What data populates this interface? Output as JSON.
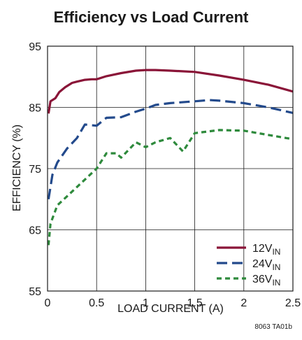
{
  "chart_data": {
    "type": "line",
    "title": "Efficiency vs Load Current",
    "xlabel": "LOAD CURRENT (A)",
    "ylabel": "EFFICIENCY (%)",
    "xlim": [
      0,
      2.5
    ],
    "ylim": [
      55,
      95
    ],
    "x_ticks": [
      0,
      0.5,
      1,
      1.5,
      2,
      2.5
    ],
    "x_tick_labels": [
      "0",
      "0.5",
      "1",
      "1.5",
      "2",
      "2.5"
    ],
    "y_ticks": [
      55,
      65,
      75,
      85,
      95
    ],
    "y_tick_labels": [
      "55",
      "65",
      "75",
      "85",
      "95"
    ],
    "grid": true,
    "legend_position": "bottom-right",
    "footnote": "8063 TA01b",
    "series": [
      {
        "name": "12V",
        "subscript": "IN",
        "color": "#8a1538",
        "dash": "solid",
        "x": [
          0.01,
          0.03,
          0.08,
          0.12,
          0.18,
          0.25,
          0.3,
          0.38,
          0.45,
          0.5,
          0.6,
          0.75,
          0.9,
          1.0,
          1.1,
          1.25,
          1.5,
          1.75,
          2.0,
          2.25,
          2.5
        ],
        "y": [
          84,
          86,
          86.5,
          87.5,
          88.3,
          89,
          89.2,
          89.5,
          89.6,
          89.6,
          90.1,
          90.6,
          91,
          91.1,
          91.1,
          91,
          90.8,
          90.2,
          89.5,
          88.7,
          87.6
        ]
      },
      {
        "name": "24V",
        "subscript": "IN",
        "color": "#234a8c",
        "dash": "long-dash",
        "x": [
          0.01,
          0.05,
          0.1,
          0.2,
          0.3,
          0.38,
          0.5,
          0.6,
          0.75,
          0.9,
          1.0,
          1.1,
          1.25,
          1.5,
          1.65,
          1.75,
          2.0,
          2.25,
          2.5
        ],
        "y": [
          70,
          74,
          76,
          78.3,
          80,
          82.2,
          82,
          83.3,
          83.4,
          84.3,
          84.8,
          85.4,
          85.7,
          86,
          86.2,
          86.1,
          85.7,
          85,
          84.1
        ]
      },
      {
        "name": "36V",
        "subscript": "IN",
        "color": "#2e8a3c",
        "dash": "short-dash",
        "x": [
          0.01,
          0.03,
          0.1,
          0.2,
          0.3,
          0.4,
          0.5,
          0.6,
          0.7,
          0.75,
          0.9,
          1.0,
          1.1,
          1.25,
          1.38,
          1.5,
          1.75,
          2.0,
          2.25,
          2.5
        ],
        "y": [
          62.5,
          66,
          69,
          70.5,
          72,
          73.5,
          75,
          77.5,
          77.5,
          76.8,
          79.3,
          78.5,
          79.3,
          80,
          77.8,
          80.8,
          81.3,
          81.2,
          80.5,
          79.8
        ]
      }
    ]
  }
}
